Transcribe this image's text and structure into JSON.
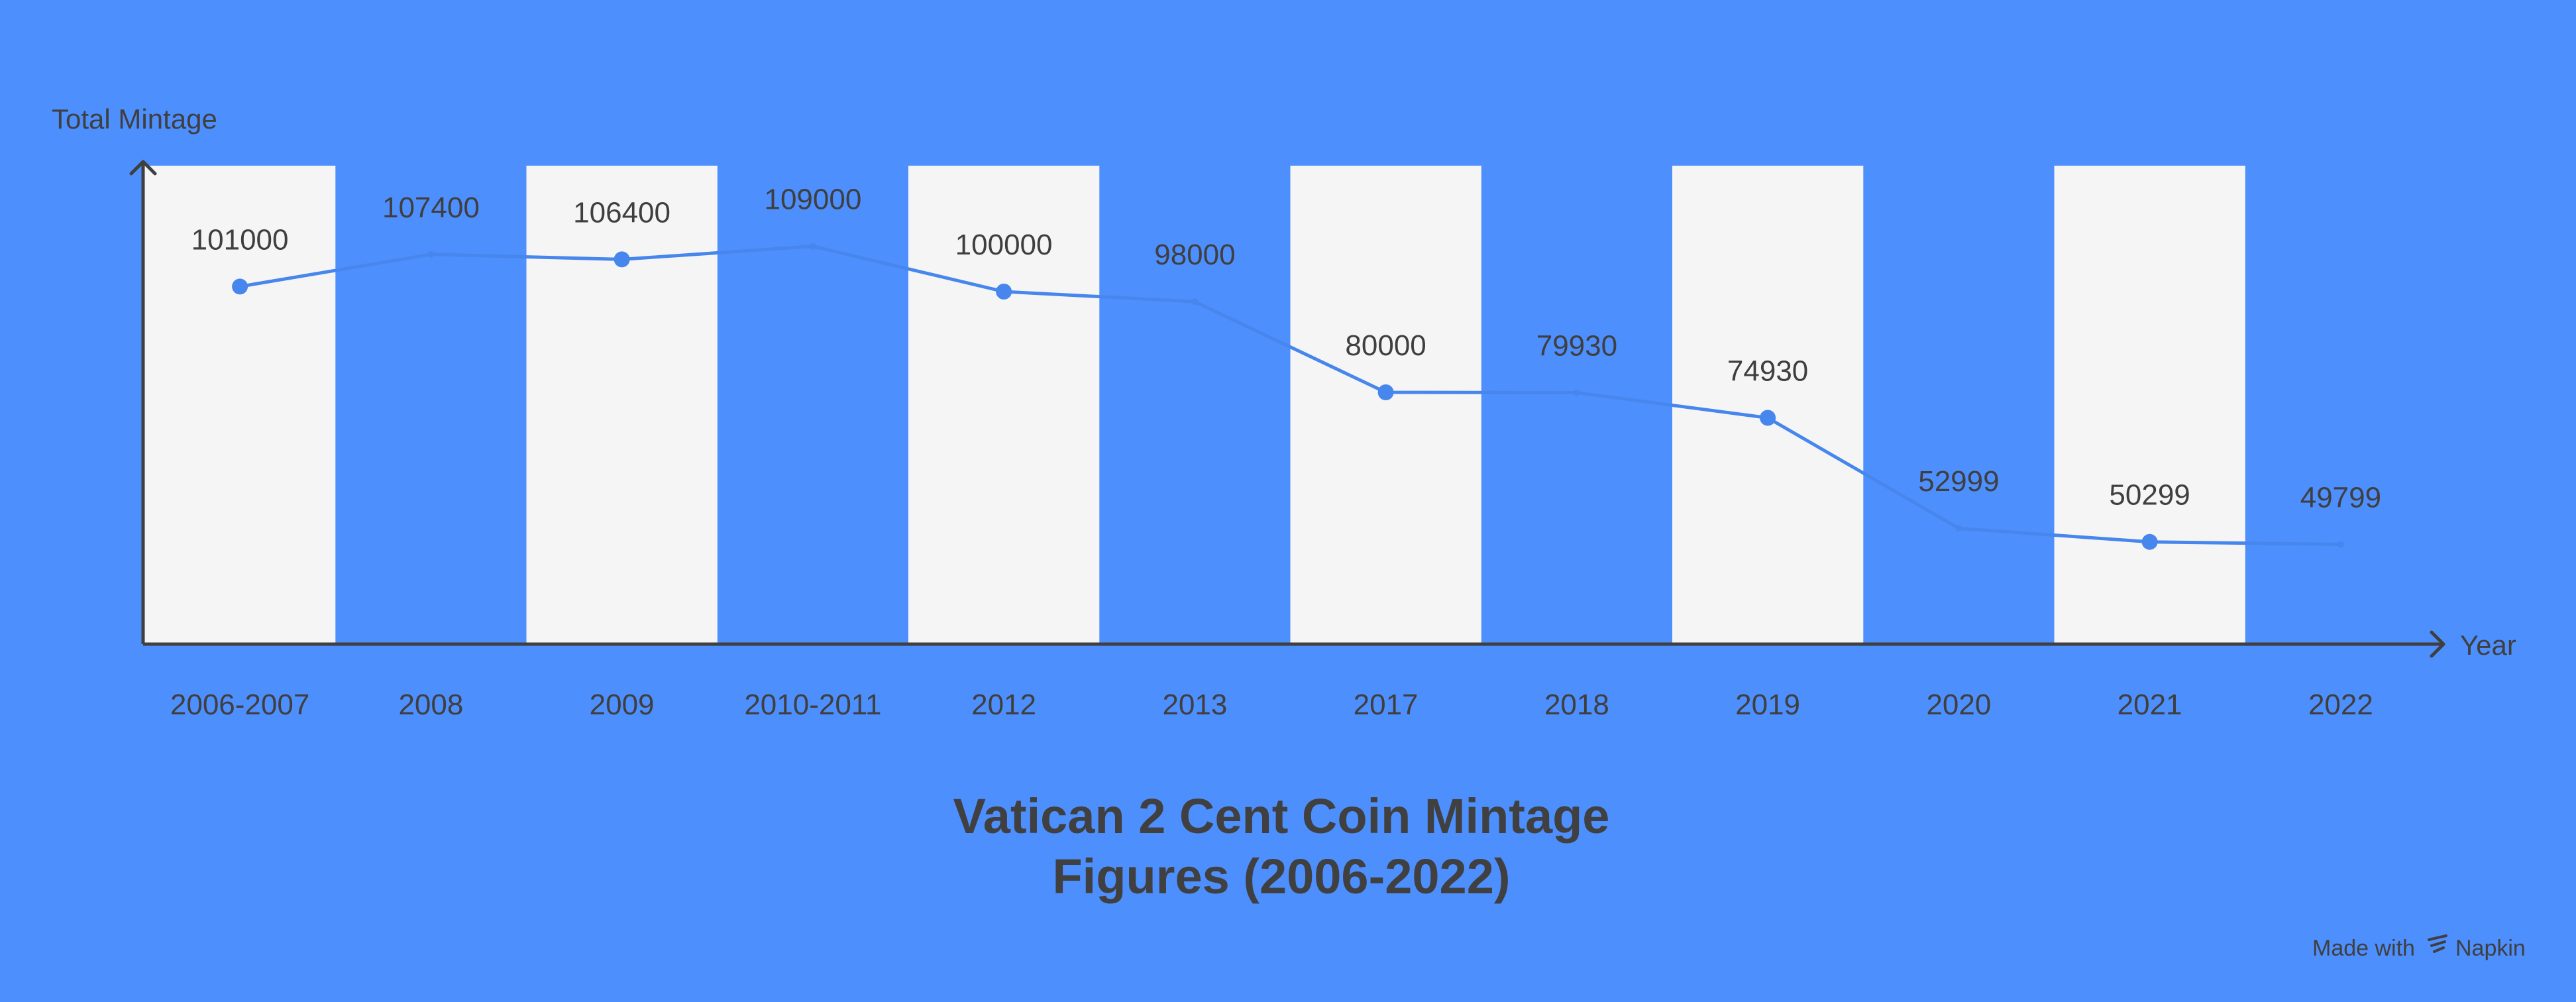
{
  "colors": {
    "background": "#4e8ffe",
    "band": "#f5f5f5",
    "line": "#4786ec",
    "axis": "#3f3f3f",
    "text": "#3f3f3f",
    "title": "#404040"
  },
  "chart_data": {
    "type": "line",
    "title_lines": [
      "Vatican 2 Cent Coin Mintage",
      "Figures (2006-2022)"
    ],
    "xlabel": "Year",
    "ylabel": "Total Mintage",
    "categories": [
      "2006-2007",
      "2008",
      "2009",
      "2010-2011",
      "2012",
      "2013",
      "2017",
      "2018",
      "2019",
      "2020",
      "2021",
      "2022"
    ],
    "series": [
      {
        "values": [
          101000,
          107400,
          106400,
          109000,
          100000,
          98000,
          80000,
          79930,
          74930,
          52999,
          50299,
          49799
        ],
        "marker_visible": [
          true,
          false,
          true,
          false,
          true,
          false,
          true,
          false,
          true,
          false,
          true,
          false
        ]
      }
    ],
    "ylim": [
      30000,
      125000
    ],
    "alternating_bands": true,
    "grid": false,
    "legend": "none"
  },
  "footer": {
    "made_with": "Made with",
    "brand": "Napkin"
  }
}
